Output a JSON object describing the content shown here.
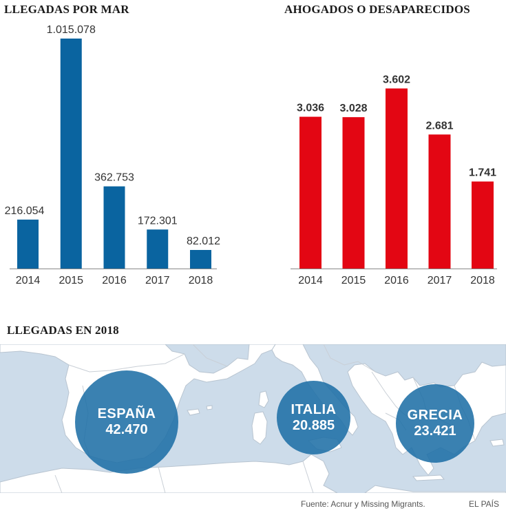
{
  "colors": {
    "blue": "#0a64a0",
    "red": "#e30613",
    "bubble": "#1f6fa6",
    "sea": "#cddcea"
  },
  "chart_data": [
    {
      "type": "bar",
      "title": "LLEGADAS POR MAR",
      "categories": [
        "2014",
        "2015",
        "2016",
        "2017",
        "2018"
      ],
      "values": [
        216054,
        1015078,
        362753,
        172301,
        82012
      ],
      "value_labels": [
        "216.054",
        "1.015.078",
        "362.753",
        "172.301",
        "82.012"
      ],
      "xlabel": "",
      "ylabel": "",
      "ylim": [
        0,
        1015078
      ],
      "grid": false
    },
    {
      "type": "bar",
      "title": "AHOGADOS O DESAPARECIDOS",
      "categories": [
        "2014",
        "2015",
        "2016",
        "2017",
        "2018"
      ],
      "values": [
        3036,
        3028,
        3602,
        2681,
        1741
      ],
      "value_labels": [
        "3.036",
        "3.028",
        "3.602",
        "2.681",
        "1.741"
      ],
      "xlabel": "",
      "ylabel": "",
      "ylim": [
        0,
        4600
      ],
      "grid": false
    }
  ],
  "map": {
    "title": "LLEGADAS EN 2018",
    "bubbles": [
      {
        "name": "ESPAÑA",
        "value": 42470,
        "label": "42.470"
      },
      {
        "name": "ITALIA",
        "value": 20885,
        "label": "20.885"
      },
      {
        "name": "GRECIA",
        "value": 23421,
        "label": "23.421"
      }
    ]
  },
  "footer": {
    "source": "Fuente: Acnur y Missing Migrants.",
    "credit": "EL PAÍS"
  }
}
